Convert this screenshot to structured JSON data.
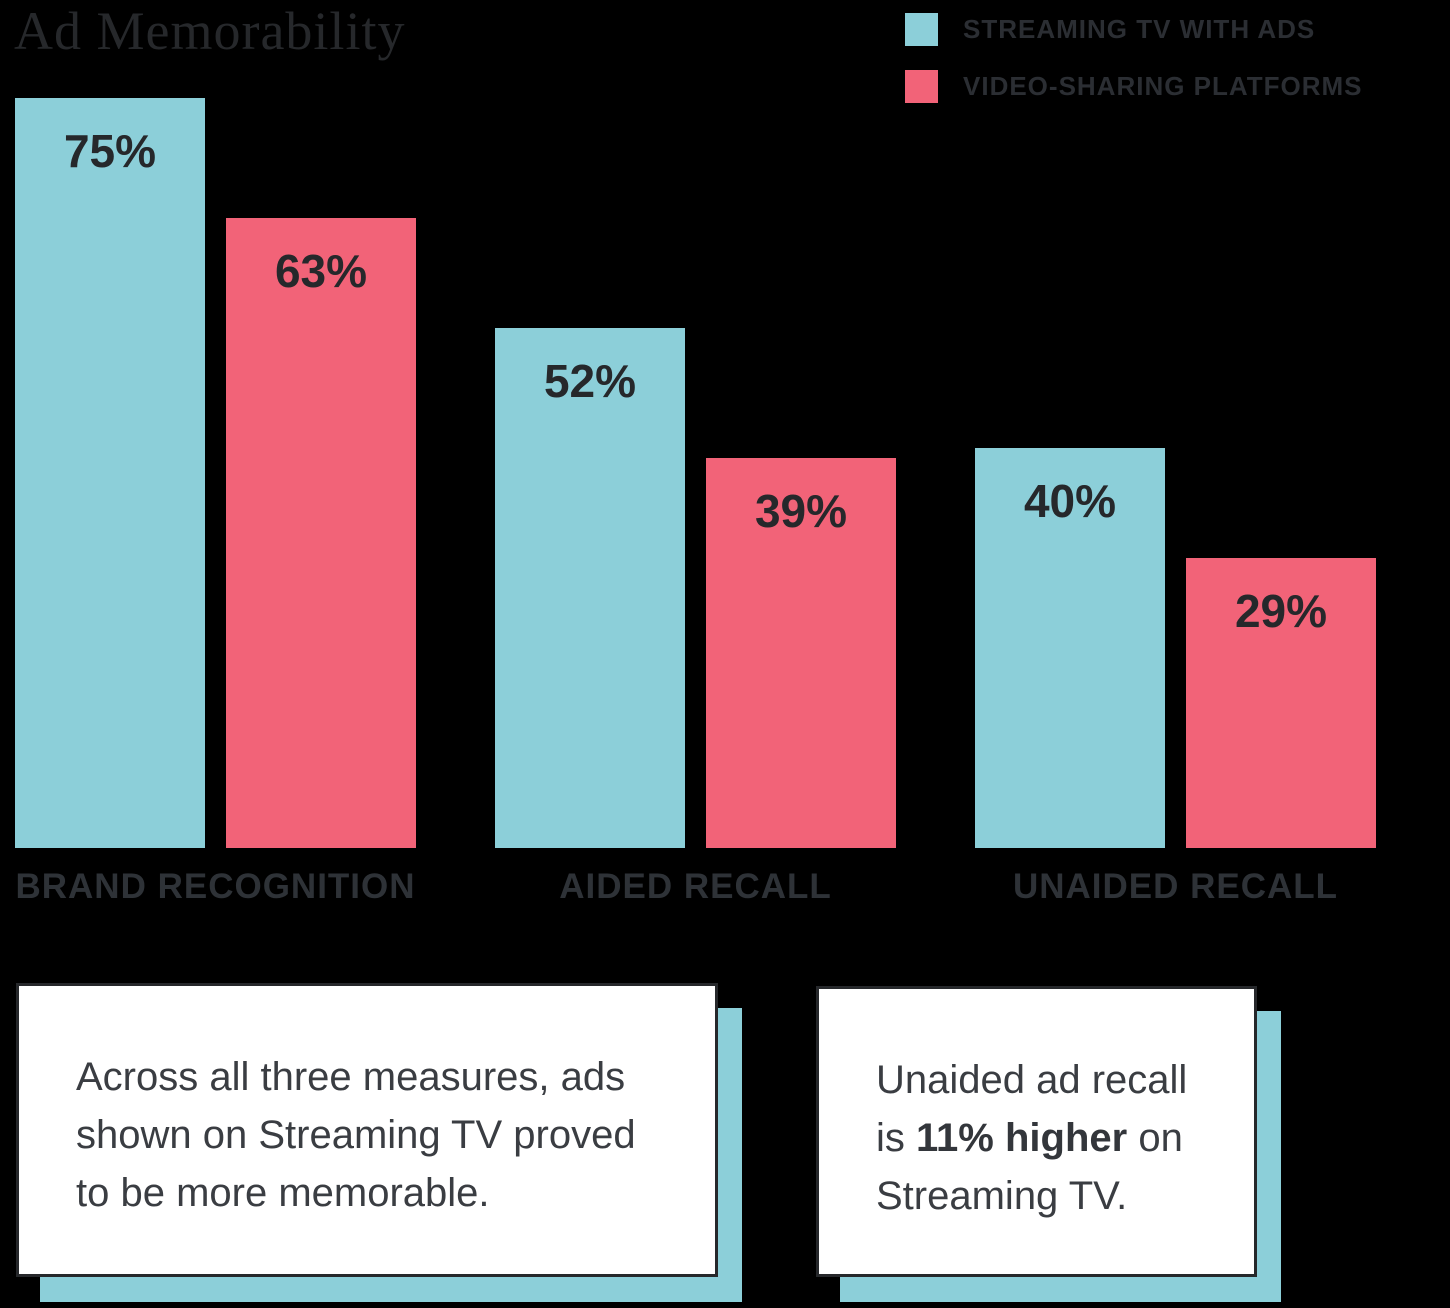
{
  "title": "Ad Memorability",
  "legend": {
    "items": [
      {
        "label": "STREAMING TV WITH ADS",
        "color": "#8ccfd9"
      },
      {
        "label": "VIDEO-SHARING PLATFORMS",
        "color": "#f26378"
      }
    ]
  },
  "chart_data": {
    "type": "bar",
    "title": "Ad Memorability",
    "categories": [
      "BRAND RECOGNITION",
      "AIDED RECALL",
      "UNAIDED RECALL"
    ],
    "series": [
      {
        "name": "STREAMING TV WITH ADS",
        "color": "#8ccfd9",
        "values": [
          75,
          52,
          40
        ]
      },
      {
        "name": "VIDEO-SHARING PLATFORMS",
        "color": "#f26378",
        "values": [
          63,
          39,
          29
        ]
      }
    ],
    "value_suffix": "%",
    "value_labels": [
      [
        "75%",
        "52%",
        "40%"
      ],
      [
        "63%",
        "39%",
        "29%"
      ]
    ],
    "ylim": [
      0,
      85
    ],
    "grid": false,
    "legend_position": "top-right",
    "y_axis_shown": false
  },
  "callouts": [
    {
      "full_text": "Across all three measures, ads shown on Streaming TV proved to be more memorable.",
      "lines": [
        [
          {
            "t": "Across all three measures, ads"
          }
        ],
        [
          {
            "t": "shown on Streaming TV proved"
          }
        ],
        [
          {
            "t": "to be more memorable."
          }
        ]
      ],
      "shadow_color": "#8ccfd9"
    },
    {
      "full_text": "Unaided ad recall is 11% higher on Streaming TV.",
      "lines": [
        [
          {
            "t": "Unaided ad recall"
          }
        ],
        [
          {
            "t": "is "
          },
          {
            "t": "11% higher",
            "b": true
          },
          {
            "t": " on"
          }
        ],
        [
          {
            "t": "Streaming TV."
          }
        ]
      ],
      "shadow_color": "#8ccfd9"
    }
  ],
  "colors": {
    "background": "#000000",
    "teal": "#8ccfd9",
    "pink": "#f26378",
    "text_dark": "#26282b",
    "category_label": "#2e3237",
    "callout_text": "#3a3d42",
    "box_background": "#ffffff",
    "box_border": "#26282b"
  }
}
